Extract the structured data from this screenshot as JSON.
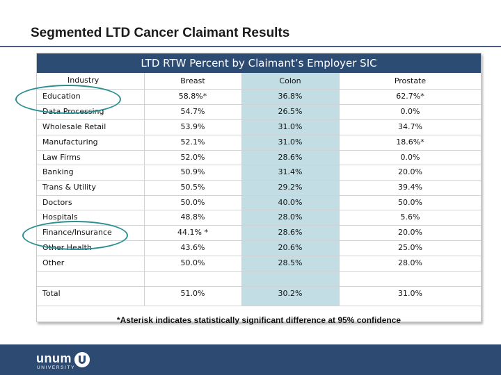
{
  "slide": {
    "title": "Segmented LTD Cancer Claimant Results"
  },
  "table": {
    "title": "LTD RTW Percent by Claimant’s Employer SIC",
    "columns": [
      "Industry",
      "Breast",
      "Colon",
      "Prostate"
    ],
    "rows": [
      [
        "Education",
        "58.8%*",
        "36.8%",
        "62.7%*"
      ],
      [
        "Data Processing",
        "54.7%",
        "26.5%",
        "0.0%"
      ],
      [
        "Wholesale Retail",
        "53.9%",
        "31.0%",
        "34.7%"
      ],
      [
        "Manufacturing",
        "52.1%",
        "31.0%",
        "18.6%*"
      ],
      [
        "Law Firms",
        "52.0%",
        "28.6%",
        "0.0%"
      ],
      [
        "Banking",
        "50.9%",
        "31.4%",
        "20.0%"
      ],
      [
        "Trans & Utility",
        "50.5%",
        "29.2%",
        "39.4%"
      ],
      [
        "Doctors",
        "50.0%",
        "40.0%",
        "50.0%"
      ],
      [
        "Hospitals",
        "48.8%",
        "28.0%",
        "5.6%"
      ],
      [
        "Finance/Insurance",
        "44.1% *",
        "28.6%",
        "20.0%"
      ],
      [
        "Other Health",
        "43.6%",
        "20.6%",
        "25.0%"
      ],
      [
        "Other",
        "50.0%",
        "28.5%",
        "28.0%"
      ],
      [
        "",
        "",
        "",
        ""
      ],
      [
        "Total",
        "51.0%",
        "30.2%",
        "31.0%"
      ]
    ],
    "footnote": "*Asterisk indicates statistically significant difference at 95% confidence"
  },
  "logo": {
    "wordmark": "unum",
    "subtitle": "UNIVERSITY"
  },
  "colors": {
    "header_bg": "#2d4c73",
    "highlight_col": "#c3dde5",
    "circle": "#2b8f92",
    "footer_bg": "#2d4a72"
  }
}
